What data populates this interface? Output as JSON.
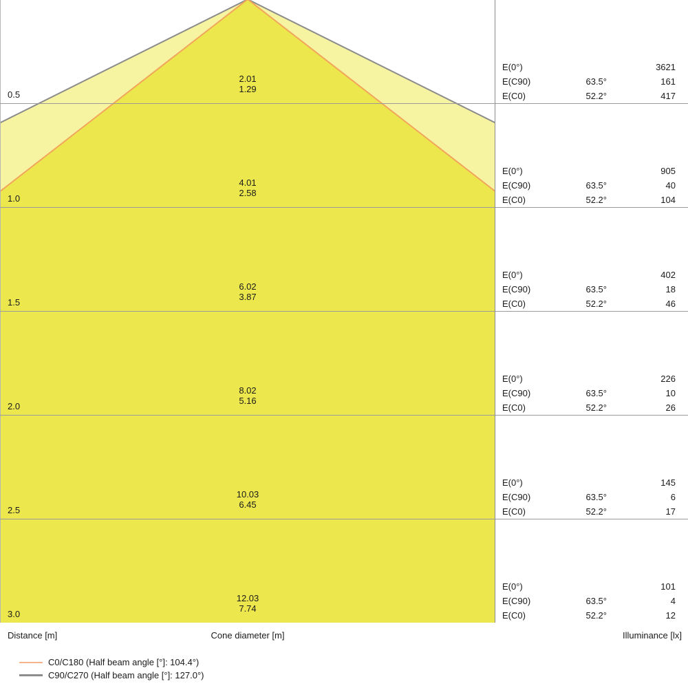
{
  "colors": {
    "inner_cone_fill": "#ECE74D",
    "outer_cone_fill": "#F6F3A1",
    "c0_edge": "#F2A55C",
    "c90_edge": "#8C8C8C",
    "grid_line": "#9A9A9A",
    "bottom_axis_line": "#5F5F5F",
    "divider_line": "#8A8A8A",
    "left_border_line": "#B5B5B5",
    "text": "#1A1A1A",
    "c0_legend_swatch": "#F5B489",
    "c90_legend_swatch": "#8C8C8C"
  },
  "axis": {
    "distance_label": "Distance [m]",
    "cone_diameter_label": "Cone diameter [m]",
    "illuminance_label": "Illuminance [lx]"
  },
  "legend": [
    {
      "label": "C0/C180 (Half beam angle [°]: 104.4°)"
    },
    {
      "label": "C90/C270 (Half beam angle [°]: 127.0°)"
    }
  ],
  "chart_data": {
    "type": "cone-diagram",
    "description": "Luminaire light cone diagram: cone diameter and illuminance vs distance",
    "beam": {
      "c0_c180_half_beam_angle_deg": 104.4,
      "c90_c270_half_beam_angle_deg": 127.0,
      "c0_half_angle_deg": 52.2,
      "c90_half_angle_deg": 63.5
    },
    "table_row_labels": [
      "E(0°)",
      "E(C90)",
      "E(C0)"
    ],
    "rows": [
      {
        "distance_m": "0.5",
        "cone_diameter_c90_m": "2.01",
        "cone_diameter_c0_m": "1.29",
        "e0_lx": "3621",
        "ec90_angle": "63.5°",
        "ec90_lx": "161",
        "ec0_angle": "52.2°",
        "ec0_lx": "417"
      },
      {
        "distance_m": "1.0",
        "cone_diameter_c90_m": "4.01",
        "cone_diameter_c0_m": "2.58",
        "e0_lx": "905",
        "ec90_angle": "63.5°",
        "ec90_lx": "40",
        "ec0_angle": "52.2°",
        "ec0_lx": "104"
      },
      {
        "distance_m": "1.5",
        "cone_diameter_c90_m": "6.02",
        "cone_diameter_c0_m": "3.87",
        "e0_lx": "402",
        "ec90_angle": "63.5°",
        "ec90_lx": "18",
        "ec0_angle": "52.2°",
        "ec0_lx": "46"
      },
      {
        "distance_m": "2.0",
        "cone_diameter_c90_m": "8.02",
        "cone_diameter_c0_m": "5.16",
        "e0_lx": "226",
        "ec90_angle": "63.5°",
        "ec90_lx": "10",
        "ec0_angle": "52.2°",
        "ec0_lx": "26"
      },
      {
        "distance_m": "2.5",
        "cone_diameter_c90_m": "10.03",
        "cone_diameter_c0_m": "6.45",
        "e0_lx": "145",
        "ec90_angle": "63.5°",
        "ec90_lx": "6",
        "ec0_angle": "52.2°",
        "ec0_lx": "17"
      },
      {
        "distance_m": "3.0",
        "cone_diameter_c90_m": "12.03",
        "cone_diameter_c0_m": "7.74",
        "e0_lx": "101",
        "ec90_angle": "63.5°",
        "ec90_lx": "4",
        "ec0_angle": "52.2°",
        "ec0_lx": "12"
      }
    ],
    "layout": {
      "distance_axis": "vertical, source at top center",
      "grid": "horizontal line per distance step",
      "legend_position": "bottom-left"
    }
  }
}
